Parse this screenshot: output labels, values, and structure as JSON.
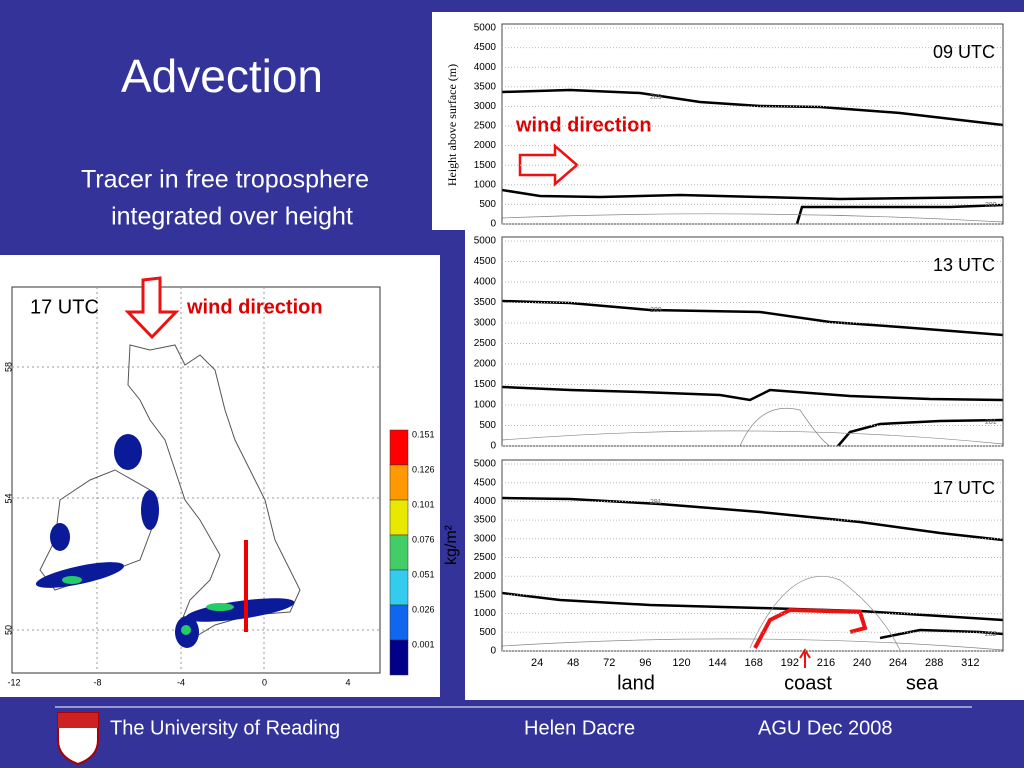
{
  "title": "Advection",
  "subtitle": [
    "Tracer in free troposphere",
    "integrated over height"
  ],
  "map": {
    "time": "17 UTC",
    "wind_label": "wind direction",
    "xticks": [
      -12,
      -8,
      -4,
      0,
      4
    ],
    "yticks": [
      58,
      54,
      50
    ],
    "colorbar": {
      "unit": "kg/m²",
      "ticks": [
        0.151,
        0.126,
        0.101,
        0.076,
        0.051,
        0.026,
        0.001
      ],
      "colors": [
        "#ff0000",
        "#ff9900",
        "#e8e800",
        "#44cc66",
        "#33ccee",
        "#1166ee",
        "#000088"
      ]
    }
  },
  "y_axis_label": "Height above surface (m)",
  "wind_label": "wind direction",
  "height_ticks": [
    0,
    500,
    1000,
    1500,
    2000,
    2500,
    3000,
    3500,
    4000,
    4500,
    5000
  ],
  "distance_ticks": [
    24,
    48,
    72,
    96,
    120,
    144,
    168,
    192,
    216,
    240,
    264,
    288,
    312
  ],
  "panels": [
    {
      "time": "09 UTC",
      "contour_labels": [
        "289",
        "280"
      ]
    },
    {
      "time": "13 UTC",
      "contour_labels": [
        "289",
        "281"
      ]
    },
    {
      "time": "17 UTC",
      "contour_labels": [
        "291",
        "282"
      ]
    }
  ],
  "x_annotations": [
    "land",
    "coast",
    "sea"
  ],
  "footer": {
    "institution": "The University of Reading",
    "author": "Helen Dacre",
    "event": "AGU Dec 2008"
  }
}
